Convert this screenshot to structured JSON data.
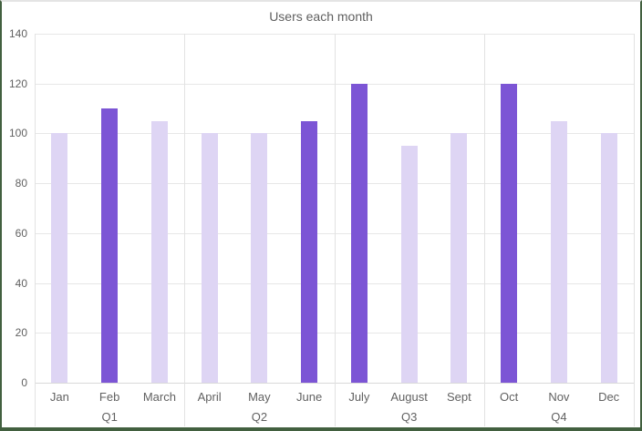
{
  "window": {
    "border_color": "#42603F",
    "top_edge_color": "#E4E4E4"
  },
  "chart_data": {
    "type": "bar",
    "title": "Users each month",
    "categories": [
      "Jan",
      "Feb",
      "March",
      "April",
      "May",
      "June",
      "July",
      "August",
      "Sept",
      "Oct",
      "Nov",
      "Dec"
    ],
    "values": [
      100,
      110,
      105,
      100,
      100,
      105,
      120,
      95,
      100,
      120,
      105,
      100
    ],
    "highlighted_categories": [
      "Feb",
      "June",
      "July",
      "Oct"
    ],
    "group_labels": [
      "Q1",
      "Q2",
      "Q3",
      "Q4"
    ],
    "months_per_group": 3,
    "xlabel": "",
    "ylabel": "",
    "ylim": [
      0,
      140
    ],
    "yticks": [
      0,
      20,
      40,
      60,
      80,
      100,
      120,
      140
    ],
    "grid": true,
    "legend_position": "none",
    "colors": {
      "bar_default": "#DED5F4",
      "bar_highlight": "#7C55D5",
      "gridline": "#E7E7E7",
      "zero_axis": "#D9D9D9",
      "separator": "#E2E2E2",
      "axis_text": "#616161",
      "title_text": "#5F5F5F"
    }
  }
}
